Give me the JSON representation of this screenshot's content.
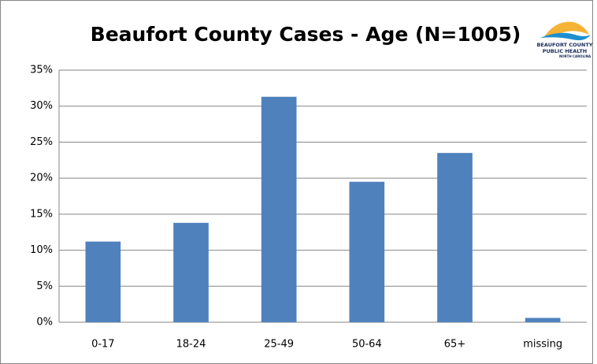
{
  "chart_data": {
    "type": "bar",
    "title": "Beaufort County Cases - Age (N=1005)",
    "logo_text": [
      "BEAUFORT COUNTY",
      "PUBLIC HEALTH",
      "NORTH CAROLINA"
    ],
    "categories": [
      "0-17",
      "18-24",
      "25-49",
      "50-64",
      "65+",
      "missing"
    ],
    "values": [
      11.2,
      13.8,
      31.3,
      19.5,
      23.5,
      0.6
    ],
    "color": "#4f81bd",
    "ylim": [
      0,
      35
    ],
    "yticks": [
      {
        "value": 0,
        "label": "0%"
      },
      {
        "value": 5,
        "label": "5%"
      },
      {
        "value": 10,
        "label": "10%"
      },
      {
        "value": 15,
        "label": "15%"
      },
      {
        "value": 20,
        "label": "20%"
      },
      {
        "value": 25,
        "label": "25%"
      },
      {
        "value": 30,
        "label": "30%"
      },
      {
        "value": 35,
        "label": "35%"
      }
    ],
    "grid": true
  }
}
